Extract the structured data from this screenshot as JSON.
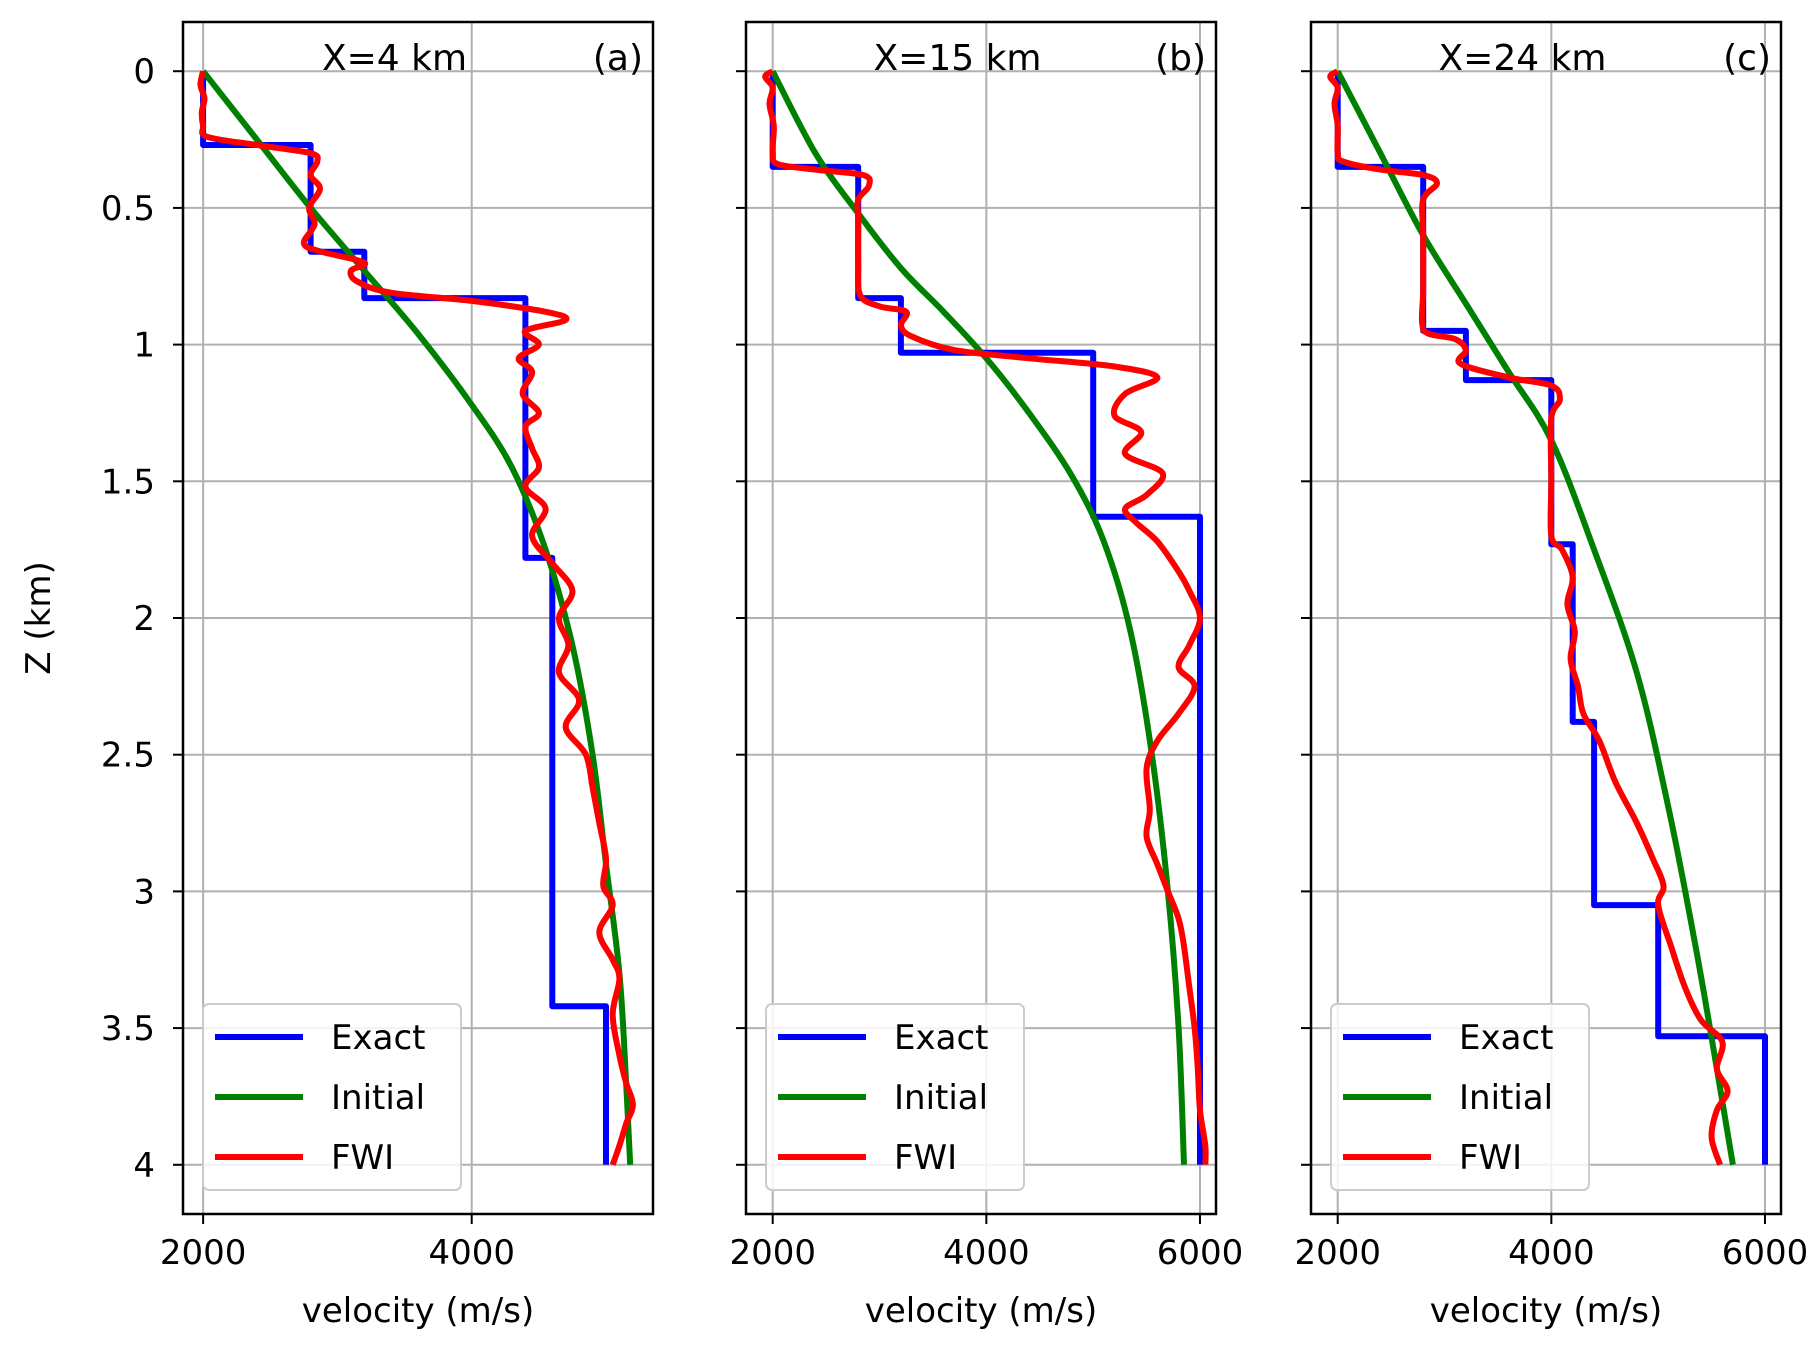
{
  "chart_data": [
    {
      "type": "line",
      "title": "X=4 km",
      "panel_label": "(a)",
      "xlabel": "velocity (m/s)",
      "ylabel": "Z (km)",
      "xlim": [
        1850,
        5350
      ],
      "ylim": [
        4.18,
        -0.18
      ],
      "y_inverted": true,
      "xticks": [
        2000,
        4000
      ],
      "yticks": [
        0,
        0.5,
        1,
        1.5,
        2,
        2.5,
        3,
        3.5,
        4
      ],
      "ytick_labels": [
        "0",
        "0.5",
        "1",
        "1.5",
        "2",
        "2.5",
        "3",
        "3.5",
        "4"
      ],
      "grid": true,
      "legend": {
        "placement": "lower-left",
        "entries": [
          "Exact",
          "Initial",
          "FWI"
        ]
      },
      "series": [
        {
          "name": "Exact",
          "color": "#0000ff",
          "kind": "step",
          "points": [
            [
              2000,
              0
            ],
            [
              2000,
              0.27
            ],
            [
              2800,
              0.27
            ],
            [
              2800,
              0.66
            ],
            [
              3200,
              0.66
            ],
            [
              3200,
              0.83
            ],
            [
              4400,
              0.83
            ],
            [
              4400,
              1.78
            ],
            [
              4600,
              1.78
            ],
            [
              4600,
              3.42
            ],
            [
              5000,
              3.42
            ],
            [
              5000,
              4.0
            ]
          ]
        },
        {
          "name": "Initial",
          "color": "#008000",
          "kind": "smooth",
          "points": [
            [
              2000,
              0
            ],
            [
              2400,
              0.25
            ],
            [
              2800,
              0.5
            ],
            [
              3200,
              0.73
            ],
            [
              3600,
              0.96
            ],
            [
              4000,
              1.22
            ],
            [
              4300,
              1.45
            ],
            [
              4550,
              1.75
            ],
            [
              4750,
              2.1
            ],
            [
              4900,
              2.5
            ],
            [
              5000,
              2.9
            ],
            [
              5100,
              3.3
            ],
            [
              5150,
              3.7
            ],
            [
              5180,
              4.0
            ]
          ]
        },
        {
          "name": "FWI",
          "color": "#ff0000",
          "kind": "smooth",
          "points": [
            [
              2000,
              0
            ],
            [
              1980,
              0.05
            ],
            [
              2010,
              0.1
            ],
            [
              1990,
              0.15
            ],
            [
              2000,
              0.2
            ],
            [
              2030,
              0.24
            ],
            [
              2400,
              0.27
            ],
            [
              2800,
              0.3
            ],
            [
              2850,
              0.33
            ],
            [
              2800,
              0.38
            ],
            [
              2870,
              0.43
            ],
            [
              2790,
              0.5
            ],
            [
              2830,
              0.56
            ],
            [
              2750,
              0.63
            ],
            [
              2880,
              0.66
            ],
            [
              3200,
              0.7
            ],
            [
              3100,
              0.73
            ],
            [
              3150,
              0.77
            ],
            [
              3400,
              0.81
            ],
            [
              4000,
              0.84
            ],
            [
              4550,
              0.88
            ],
            [
              4700,
              0.91
            ],
            [
              4400,
              0.95
            ],
            [
              4500,
              1.0
            ],
            [
              4350,
              1.05
            ],
            [
              4450,
              1.1
            ],
            [
              4380,
              1.18
            ],
            [
              4500,
              1.25
            ],
            [
              4400,
              1.3
            ],
            [
              4450,
              1.38
            ],
            [
              4500,
              1.45
            ],
            [
              4400,
              1.52
            ],
            [
              4550,
              1.6
            ],
            [
              4450,
              1.7
            ],
            [
              4600,
              1.8
            ],
            [
              4750,
              1.9
            ],
            [
              4650,
              2.0
            ],
            [
              4720,
              2.1
            ],
            [
              4650,
              2.2
            ],
            [
              4800,
              2.3
            ],
            [
              4700,
              2.4
            ],
            [
              4850,
              2.5
            ],
            [
              4900,
              2.62
            ],
            [
              4950,
              2.75
            ],
            [
              5000,
              2.88
            ],
            [
              4980,
              2.98
            ],
            [
              5050,
              3.05
            ],
            [
              4950,
              3.15
            ],
            [
              5050,
              3.25
            ],
            [
              5100,
              3.32
            ],
            [
              5050,
              3.45
            ],
            [
              5100,
              3.6
            ],
            [
              5150,
              3.7
            ],
            [
              5200,
              3.78
            ],
            [
              5150,
              3.85
            ],
            [
              5100,
              3.93
            ],
            [
              5050,
              4.0
            ]
          ]
        }
      ]
    },
    {
      "type": "line",
      "title": "X=15 km",
      "panel_label": "(b)",
      "xlabel": "velocity (m/s)",
      "ylabel": "",
      "xlim": [
        1750,
        6150
      ],
      "ylim": [
        4.18,
        -0.18
      ],
      "y_inverted": true,
      "xticks": [
        2000,
        4000,
        6000
      ],
      "yticks": [
        0,
        0.5,
        1,
        1.5,
        2,
        2.5,
        3,
        3.5,
        4
      ],
      "ytick_labels": [],
      "grid": true,
      "legend": {
        "placement": "lower-left",
        "entries": [
          "Exact",
          "Initial",
          "FWI"
        ]
      },
      "series": [
        {
          "name": "Exact",
          "color": "#0000ff",
          "kind": "step",
          "points": [
            [
              2000,
              0
            ],
            [
              2000,
              0.35
            ],
            [
              2800,
              0.35
            ],
            [
              2800,
              0.83
            ],
            [
              3200,
              0.83
            ],
            [
              3200,
              1.03
            ],
            [
              5000,
              1.03
            ],
            [
              5000,
              1.63
            ],
            [
              6000,
              1.63
            ],
            [
              6000,
              4.0
            ]
          ]
        },
        {
          "name": "Initial",
          "color": "#008000",
          "kind": "smooth",
          "points": [
            [
              2000,
              0
            ],
            [
              2400,
              0.3
            ],
            [
              2800,
              0.52
            ],
            [
              3200,
              0.72
            ],
            [
              3600,
              0.88
            ],
            [
              4000,
              1.05
            ],
            [
              4400,
              1.25
            ],
            [
              4800,
              1.48
            ],
            [
              5100,
              1.72
            ],
            [
              5350,
              2.05
            ],
            [
              5550,
              2.5
            ],
            [
              5700,
              3.0
            ],
            [
              5800,
              3.5
            ],
            [
              5850,
              4.0
            ]
          ]
        },
        {
          "name": "FWI",
          "color": "#ff0000",
          "kind": "smooth",
          "points": [
            [
              2000,
              0
            ],
            [
              1930,
              0.02
            ],
            [
              2000,
              0.06
            ],
            [
              1970,
              0.12
            ],
            [
              2010,
              0.2
            ],
            [
              2000,
              0.3
            ],
            [
              2050,
              0.34
            ],
            [
              2400,
              0.36
            ],
            [
              2850,
              0.38
            ],
            [
              2900,
              0.42
            ],
            [
              2800,
              0.47
            ],
            [
              2800,
              0.55
            ],
            [
              2800,
              0.7
            ],
            [
              2820,
              0.82
            ],
            [
              3000,
              0.86
            ],
            [
              3250,
              0.88
            ],
            [
              3200,
              0.93
            ],
            [
              3300,
              0.97
            ],
            [
              3700,
              1.02
            ],
            [
              4400,
              1.05
            ],
            [
              5200,
              1.08
            ],
            [
              5600,
              1.12
            ],
            [
              5300,
              1.18
            ],
            [
              5200,
              1.26
            ],
            [
              5450,
              1.32
            ],
            [
              5300,
              1.4
            ],
            [
              5650,
              1.47
            ],
            [
              5500,
              1.55
            ],
            [
              5300,
              1.6
            ],
            [
              5400,
              1.65
            ],
            [
              5600,
              1.72
            ],
            [
              5800,
              1.83
            ],
            [
              5900,
              1.9
            ],
            [
              6000,
              2.0
            ],
            [
              5900,
              2.1
            ],
            [
              5800,
              2.18
            ],
            [
              5950,
              2.25
            ],
            [
              5800,
              2.35
            ],
            [
              5600,
              2.45
            ],
            [
              5500,
              2.55
            ],
            [
              5530,
              2.7
            ],
            [
              5500,
              2.8
            ],
            [
              5600,
              2.9
            ],
            [
              5700,
              3.0
            ],
            [
              5800,
              3.1
            ],
            [
              5850,
              3.2
            ],
            [
              5900,
              3.35
            ],
            [
              5950,
              3.5
            ],
            [
              5980,
              3.65
            ],
            [
              6000,
              3.8
            ],
            [
              6050,
              3.93
            ],
            [
              6050,
              4.0
            ]
          ]
        }
      ]
    },
    {
      "type": "line",
      "title": "X=24 km",
      "panel_label": "(c)",
      "xlabel": "velocity (m/s)",
      "ylabel": "",
      "xlim": [
        1750,
        6150
      ],
      "ylim": [
        4.18,
        -0.18
      ],
      "y_inverted": true,
      "xticks": [
        2000,
        4000,
        6000
      ],
      "yticks": [
        0,
        0.5,
        1,
        1.5,
        2,
        2.5,
        3,
        3.5,
        4
      ],
      "ytick_labels": [],
      "grid": true,
      "legend": {
        "placement": "lower-left",
        "entries": [
          "Exact",
          "Initial",
          "FWI"
        ]
      },
      "series": [
        {
          "name": "Exact",
          "color": "#0000ff",
          "kind": "step",
          "points": [
            [
              2000,
              0
            ],
            [
              2000,
              0.35
            ],
            [
              2800,
              0.35
            ],
            [
              2800,
              0.95
            ],
            [
              3200,
              0.95
            ],
            [
              3200,
              1.13
            ],
            [
              4000,
              1.13
            ],
            [
              4000,
              1.73
            ],
            [
              4200,
              1.73
            ],
            [
              4200,
              2.38
            ],
            [
              4400,
              2.38
            ],
            [
              4400,
              3.05
            ],
            [
              5000,
              3.05
            ],
            [
              5000,
              3.53
            ],
            [
              6000,
              3.53
            ],
            [
              6000,
              4.0
            ]
          ]
        },
        {
          "name": "Initial",
          "color": "#008000",
          "kind": "smooth",
          "points": [
            [
              2000,
              0
            ],
            [
              2400,
              0.3
            ],
            [
              2800,
              0.6
            ],
            [
              3200,
              0.85
            ],
            [
              3600,
              1.1
            ],
            [
              4000,
              1.35
            ],
            [
              4400,
              1.75
            ],
            [
              4800,
              2.2
            ],
            [
              5100,
              2.7
            ],
            [
              5350,
              3.2
            ],
            [
              5550,
              3.65
            ],
            [
              5700,
              4.0
            ]
          ]
        },
        {
          "name": "FWI",
          "color": "#ff0000",
          "kind": "smooth",
          "points": [
            [
              2000,
              0
            ],
            [
              1930,
              0.02
            ],
            [
              2000,
              0.06
            ],
            [
              1970,
              0.12
            ],
            [
              2000,
              0.2
            ],
            [
              2000,
              0.3
            ],
            [
              2050,
              0.33
            ],
            [
              2400,
              0.36
            ],
            [
              2800,
              0.38
            ],
            [
              2930,
              0.41
            ],
            [
              2800,
              0.47
            ],
            [
              2800,
              0.6
            ],
            [
              2800,
              0.8
            ],
            [
              2790,
              0.92
            ],
            [
              2850,
              0.96
            ],
            [
              3100,
              0.98
            ],
            [
              3200,
              1.02
            ],
            [
              3150,
              1.07
            ],
            [
              3600,
              1.12
            ],
            [
              4000,
              1.15
            ],
            [
              4080,
              1.2
            ],
            [
              4000,
              1.27
            ],
            [
              4000,
              1.5
            ],
            [
              4000,
              1.7
            ],
            [
              4100,
              1.75
            ],
            [
              4200,
              1.85
            ],
            [
              4150,
              1.95
            ],
            [
              4220,
              2.05
            ],
            [
              4180,
              2.15
            ],
            [
              4250,
              2.25
            ],
            [
              4300,
              2.35
            ],
            [
              4450,
              2.45
            ],
            [
              4600,
              2.6
            ],
            [
              4800,
              2.75
            ],
            [
              4950,
              2.88
            ],
            [
              5050,
              2.98
            ],
            [
              5000,
              3.05
            ],
            [
              5120,
              3.2
            ],
            [
              5250,
              3.35
            ],
            [
              5400,
              3.47
            ],
            [
              5600,
              3.55
            ],
            [
              5550,
              3.65
            ],
            [
              5650,
              3.73
            ],
            [
              5550,
              3.8
            ],
            [
              5500,
              3.9
            ],
            [
              5580,
              4.0
            ]
          ]
        }
      ]
    }
  ]
}
